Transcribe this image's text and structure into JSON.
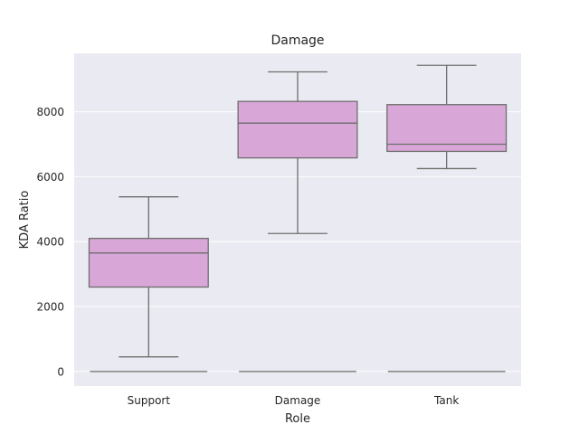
{
  "chart_data": {
    "type": "box",
    "title": "Damage",
    "xlabel": "Role",
    "ylabel": "KDA Ratio",
    "categories": [
      "Support",
      "Damage",
      "Tank"
    ],
    "ylim": [
      -450,
      9800
    ],
    "yticks": [
      0,
      2000,
      4000,
      6000,
      8000
    ],
    "grid": true,
    "box_color": "#d8a7d8",
    "edge_color": "#6e6e6e",
    "background_color": "#eaeaf2",
    "boxes": [
      {
        "category": "Support",
        "whisker_low": 450,
        "q1": 2600,
        "median": 3650,
        "q3": 4100,
        "whisker_high": 5380,
        "outlier_values": [
          0
        ]
      },
      {
        "category": "Damage",
        "whisker_low": 4250,
        "q1": 6580,
        "median": 7650,
        "q3": 8320,
        "whisker_high": 9230,
        "outlier_values": [
          0
        ]
      },
      {
        "category": "Tank",
        "whisker_low": 6250,
        "q1": 6780,
        "median": 7000,
        "q3": 8220,
        "whisker_high": 9430,
        "outlier_values": [
          0
        ]
      }
    ]
  }
}
